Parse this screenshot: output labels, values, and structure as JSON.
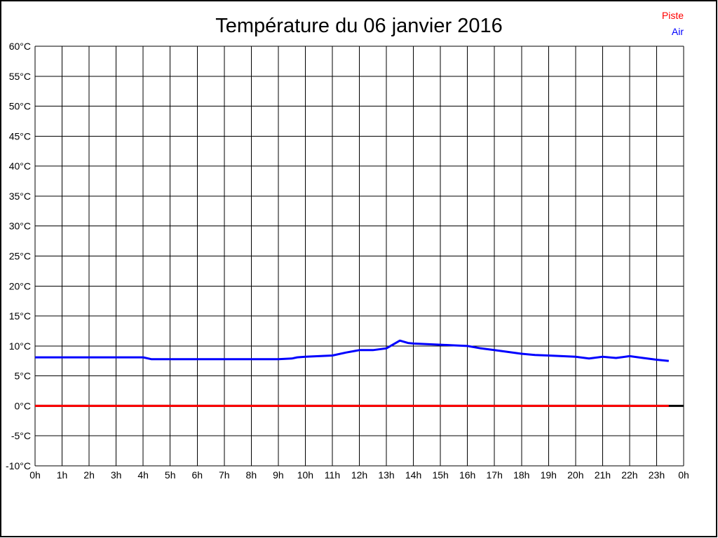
{
  "page": {
    "title": "Température du 06 janvier 2016"
  },
  "legend": {
    "position": "top-right",
    "items": [
      {
        "label": "Piste",
        "color": "#ff0000"
      },
      {
        "label": "Air",
        "color": "#0000ff"
      }
    ]
  },
  "chart_data": {
    "type": "line",
    "title": "Température du 06 janvier 2016",
    "xlabel": "",
    "ylabel": "",
    "grid": true,
    "grid_color": "#000000",
    "background_color": "#ffffff",
    "frame_color": "#000000",
    "x_range": [
      0,
      24
    ],
    "y_range": [
      -10,
      60
    ],
    "x_tick_step_hours": 1,
    "y_tick_step": 5,
    "x_tick_labels": [
      "0h",
      "1h",
      "2h",
      "3h",
      "4h",
      "5h",
      "6h",
      "7h",
      "8h",
      "9h",
      "10h",
      "11h",
      "12h",
      "13h",
      "14h",
      "15h",
      "16h",
      "17h",
      "18h",
      "19h",
      "20h",
      "21h",
      "22h",
      "23h",
      "0h"
    ],
    "y_tick_labels": [
      "60°C",
      "55°C",
      "50°C",
      "45°C",
      "40°C",
      "35°C",
      "30°C",
      "25°C",
      "20°C",
      "15°C",
      "10°C",
      "5°C",
      "0°C",
      "-5°C",
      "-10°C"
    ],
    "zero_line": {
      "y": 0,
      "x": [
        0,
        24
      ],
      "color": "#000000",
      "width": 3
    },
    "series": [
      {
        "name": "Piste",
        "color": "#ff0000",
        "width": 3,
        "points": [
          [
            0,
            0.0
          ],
          [
            23.45,
            0.0
          ]
        ]
      },
      {
        "name": "Air",
        "color": "#0000ff",
        "width": 3,
        "points": [
          [
            0,
            8.1
          ],
          [
            0.5,
            8.1
          ],
          [
            1,
            8.1
          ],
          [
            1.5,
            8.1
          ],
          [
            2,
            8.1
          ],
          [
            2.5,
            8.1
          ],
          [
            3,
            8.1
          ],
          [
            3.5,
            8.1
          ],
          [
            4,
            8.1
          ],
          [
            4.3,
            7.8
          ],
          [
            5,
            7.8
          ],
          [
            5.5,
            7.8
          ],
          [
            6,
            7.8
          ],
          [
            6.5,
            7.8
          ],
          [
            7,
            7.8
          ],
          [
            7.5,
            7.8
          ],
          [
            8,
            7.8
          ],
          [
            8.5,
            7.8
          ],
          [
            9,
            7.8
          ],
          [
            9.5,
            7.9
          ],
          [
            9.7,
            8.1
          ],
          [
            10,
            8.2
          ],
          [
            10.5,
            8.3
          ],
          [
            11,
            8.4
          ],
          [
            11.5,
            8.9
          ],
          [
            12,
            9.3
          ],
          [
            12.5,
            9.3
          ],
          [
            13,
            9.6
          ],
          [
            13.5,
            10.9
          ],
          [
            13.8,
            10.5
          ],
          [
            14,
            10.4
          ],
          [
            14.5,
            10.3
          ],
          [
            15,
            10.2
          ],
          [
            15.5,
            10.1
          ],
          [
            16,
            10.0
          ],
          [
            16.5,
            9.6
          ],
          [
            17,
            9.3
          ],
          [
            17.5,
            9.0
          ],
          [
            18,
            8.7
          ],
          [
            18.5,
            8.5
          ],
          [
            19,
            8.4
          ],
          [
            19.5,
            8.3
          ],
          [
            20,
            8.2
          ],
          [
            20.5,
            7.9
          ],
          [
            21,
            8.2
          ],
          [
            21.5,
            8.0
          ],
          [
            22,
            8.3
          ],
          [
            22.5,
            8.0
          ],
          [
            23,
            7.7
          ],
          [
            23.45,
            7.5
          ]
        ]
      }
    ]
  }
}
